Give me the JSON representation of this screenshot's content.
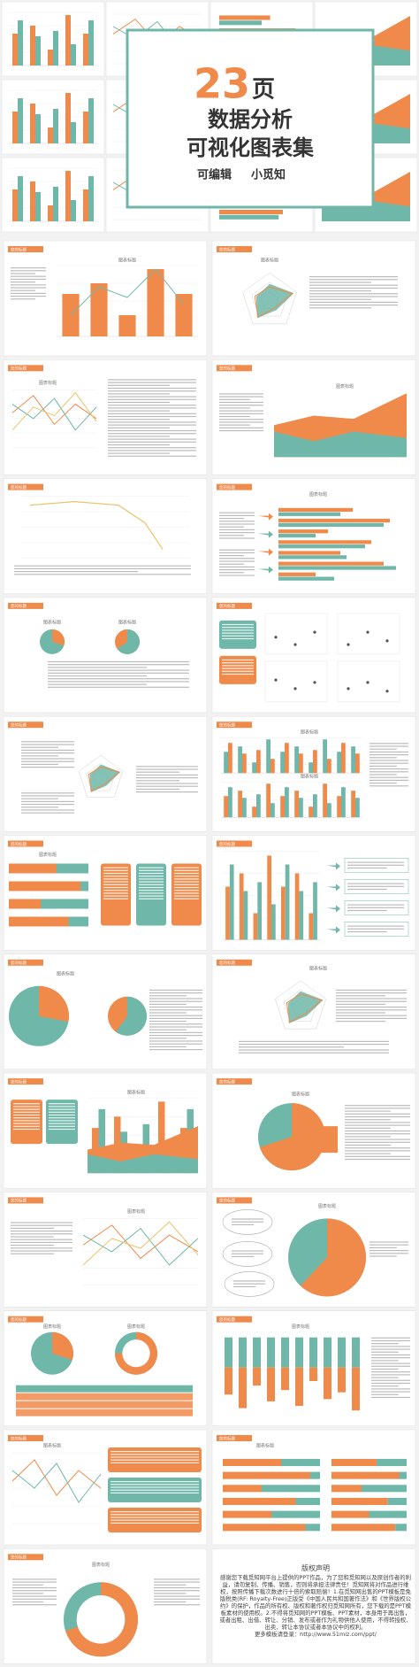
{
  "cover": {
    "number": "23",
    "unit": "页",
    "line1": "数据分析",
    "line2": "可视化图表集",
    "author_left": "可编辑",
    "author_right": "小觅知"
  },
  "slide_tab": "您的标题",
  "chart_title": "图表标题",
  "copyright": {
    "title": "版权声明",
    "body": "感谢您下载觅知网平台上提供的PPT作品，为了您和觅知网以及原创作者的利益，请勿复制、传播、销售，否则将承担法律责任！觅知网将对作品进行维权，按照传播下载次数进行十倍的索取赔偿！1.在觅知网出售的PPT模板是免版税类(RF: Royalty-Free)正版受《中国人民共和国著作法》和《世界版权公约》的保护，作品的所有权、版权和著作权归觅知网所有，您下载的是PPT模板素材的使用权。2.不得将觅知网的PPT模板、PPT素材，本身用于再出售，或者出租、出借、转让、分销、发布或者作为礼物供他人使用，不得转授权、出卖、转让本协议或者本协议中的权利。",
    "more": "更多模板请登录：http://www.51miz.com/ppt/"
  }
}
